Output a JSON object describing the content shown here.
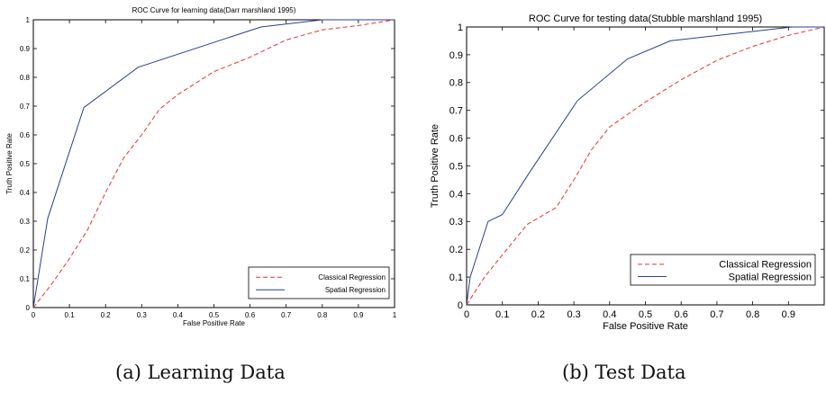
{
  "chart_data": [
    {
      "type": "line",
      "title": "ROC Curve for learning data(Darr marshland 1995)",
      "xlabel": "False Positive Rate",
      "ylabel": "Truth Positive Rate",
      "xlim": [
        0,
        1
      ],
      "ylim": [
        0,
        1
      ],
      "xticks": [
        "0",
        "0.1",
        "0.2",
        "0.3",
        "0.4",
        "0.5",
        "0.6",
        "0.7",
        "0.8",
        "0.9",
        "1"
      ],
      "yticks": [
        "0",
        "0.1",
        "0.2",
        "0.3",
        "0.4",
        "0.5",
        "0.6",
        "0.7",
        "0.8",
        "0.9",
        "1"
      ],
      "grid": false,
      "legend_position": "bottom-right",
      "series": [
        {
          "name": "Classical Regression",
          "color": "#e8312f",
          "style": "dashed",
          "x": [
            0,
            0.05,
            0.1,
            0.15,
            0.2,
            0.25,
            0.3,
            0.35,
            0.4,
            0.5,
            0.6,
            0.7,
            0.8,
            0.9,
            1.0
          ],
          "y": [
            0,
            0.08,
            0.17,
            0.27,
            0.4,
            0.52,
            0.6,
            0.69,
            0.74,
            0.82,
            0.87,
            0.93,
            0.965,
            0.98,
            1.0
          ]
        },
        {
          "name": "Spatial Regression",
          "color": "#2c3e8f",
          "style": "solid",
          "x": [
            0,
            0.04,
            0.14,
            0.29,
            0.63,
            0.8,
            1.0
          ],
          "y": [
            0,
            0.31,
            0.695,
            0.835,
            0.975,
            1.0,
            1.0
          ]
        }
      ]
    },
    {
      "type": "line",
      "title": "ROC Curve for testing data(Stubble marshland 1995)",
      "xlabel": "False Positive Rate",
      "ylabel": "Truth Positive Rate",
      "xlim": [
        0,
        1
      ],
      "ylim": [
        0,
        1
      ],
      "xticks": [
        "0",
        "0.1",
        "0.2",
        "0.3",
        "0.4",
        "0.5",
        "0.6",
        "0.7",
        "0.8",
        "0.9"
      ],
      "yticks": [
        "0",
        "0.1",
        "0.2",
        "0.3",
        "0.4",
        "0.5",
        "0.6",
        "0.7",
        "0.8",
        "0.9",
        "1"
      ],
      "grid": false,
      "legend_position": "bottom-right",
      "series": [
        {
          "name": "Classical Regression",
          "color": "#e8312f",
          "style": "dashed",
          "x": [
            0,
            0.05,
            0.1,
            0.17,
            0.25,
            0.3,
            0.35,
            0.4,
            0.5,
            0.6,
            0.7,
            0.8,
            0.9,
            1.0
          ],
          "y": [
            0,
            0.1,
            0.18,
            0.29,
            0.35,
            0.45,
            0.56,
            0.64,
            0.73,
            0.81,
            0.88,
            0.93,
            0.97,
            1.0
          ]
        },
        {
          "name": "Spatial Regression",
          "color": "#2c3e8f",
          "style": "solid",
          "x": [
            0,
            0.01,
            0.06,
            0.1,
            0.17,
            0.31,
            0.45,
            0.57,
            0.91,
            1.0
          ],
          "y": [
            0,
            0.1,
            0.3,
            0.325,
            0.465,
            0.735,
            0.885,
            0.95,
            1.0,
            1.0
          ]
        }
      ]
    }
  ],
  "captions": [
    "(a) Learning Data",
    "(b) Test Data"
  ]
}
